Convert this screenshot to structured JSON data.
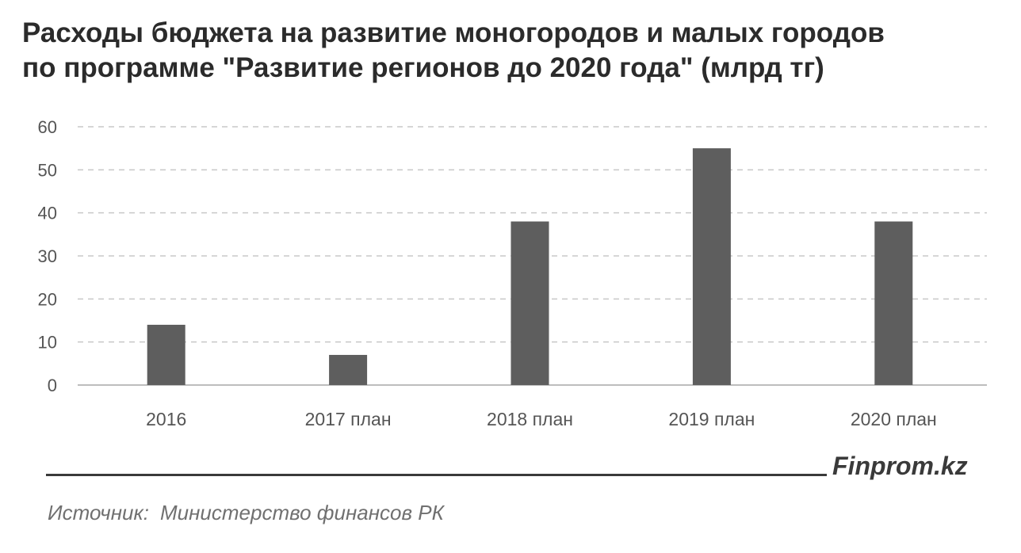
{
  "title": {
    "line1": "Расходы бюджета на развитие моногородов  и малых городов",
    "line2": "по программе \"Развитие регионов до 2020 года\" (млрд  тг)"
  },
  "chart_data": {
    "type": "bar",
    "categories": [
      "2016",
      "2017 план",
      "2018 план",
      "2019 план",
      "2020 план"
    ],
    "values": [
      14,
      7,
      38,
      55,
      38
    ],
    "ylim": [
      0,
      60
    ],
    "yticks": [
      0,
      10,
      20,
      30,
      40,
      50,
      60
    ],
    "grid": true,
    "gridStyle": "dashed",
    "legend": "none",
    "barColor": "#5e5e5e"
  },
  "footer": {
    "brand": "Finprom.kz",
    "source_label": "Источник:",
    "source_value": "Министерство финансов  РК"
  }
}
